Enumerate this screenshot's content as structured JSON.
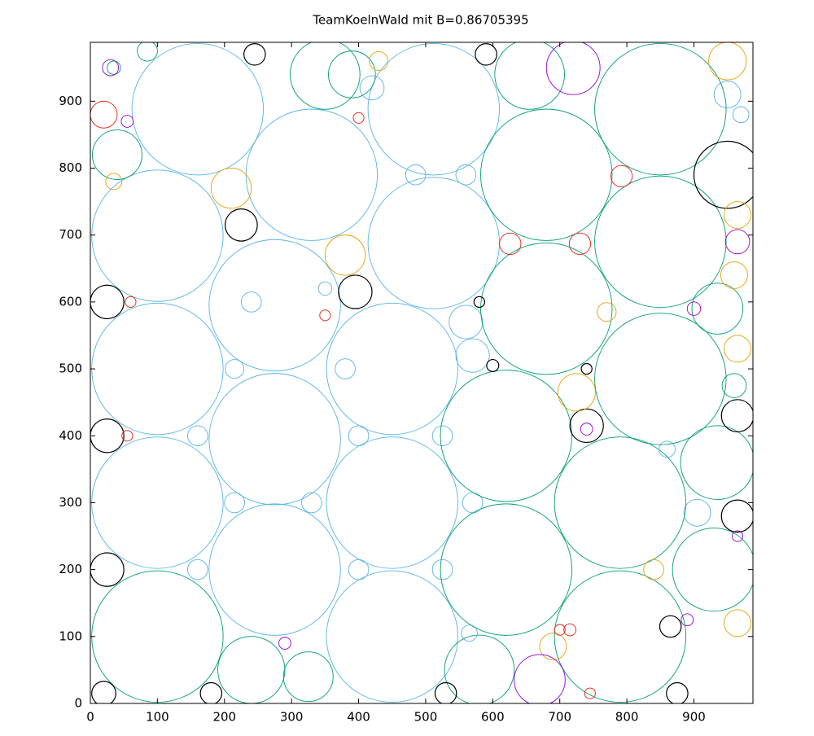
{
  "chart_data": {
    "type": "circles",
    "title": "TeamKoelnWald mit B=0.86705395",
    "xlim": [
      0,
      988
    ],
    "ylim": [
      0,
      988
    ],
    "xticks": [
      0,
      100,
      200,
      300,
      400,
      500,
      600,
      700,
      800,
      900
    ],
    "yticks": [
      0,
      100,
      200,
      300,
      400,
      500,
      600,
      700,
      800,
      900
    ],
    "series": [
      {
        "color": "#56b4e9",
        "x": [
          160,
          512,
          330,
          100,
          512,
          275,
          100,
          450,
          275,
          100,
          450,
          275,
          450,
          560,
          485,
          240,
          380,
          215,
          570,
          560,
          400,
          525,
          160,
          160,
          400,
          525,
          215,
          330,
          570,
          950,
          970,
          860,
          905,
          350,
          420,
          565
        ],
        "y": [
          888,
          888,
          790,
          699,
          688,
          595,
          500,
          500,
          395,
          300,
          300,
          200,
          100,
          790,
          790,
          600,
          500,
          500,
          520,
          570,
          400,
          400,
          400,
          200,
          200,
          200,
          300,
          300,
          300,
          910,
          880,
          380,
          285,
          620,
          920,
          105
        ],
        "r": [
          98,
          98,
          98,
          98,
          98,
          98,
          98,
          98,
          98,
          98,
          98,
          98,
          98,
          15,
          15,
          15,
          15,
          14,
          25,
          25,
          15,
          15,
          15,
          15,
          15,
          15,
          15,
          15,
          15,
          20,
          12,
          12,
          20,
          10,
          18,
          12
        ]
      },
      {
        "color": "#009e73",
        "x": [
          850,
          680,
          680,
          850,
          620,
          790,
          620,
          850,
          790,
          100,
          930,
          935,
          240,
          580,
          325,
          350,
          655,
          390,
          40,
          85,
          960,
          935,
          35
        ],
        "y": [
          888,
          790,
          590,
          690,
          400,
          300,
          200,
          485,
          100,
          100,
          200,
          360,
          50,
          50,
          40,
          940,
          940,
          940,
          820,
          975,
          475,
          590,
          950
        ],
        "r": [
          98,
          98,
          98,
          98,
          98,
          98,
          98,
          98,
          98,
          98,
          62,
          55,
          50,
          52,
          37,
          52,
          52,
          35,
          37,
          15,
          18,
          38,
          10
        ]
      },
      {
        "color": "#000000",
        "x": [
          950,
          395,
          25,
          25,
          25,
          740,
          965,
          965,
          865,
          20,
          180,
          530,
          875,
          590,
          245,
          225,
          580,
          740,
          600
        ],
        "y": [
          790,
          615,
          600,
          400,
          200,
          415,
          430,
          280,
          115,
          15,
          15,
          15,
          15,
          970,
          970,
          715,
          600,
          500,
          505
        ],
        "r": [
          50,
          25,
          25,
          25,
          25,
          25,
          24,
          24,
          16,
          18,
          16,
          16,
          16,
          16,
          16,
          24,
          8,
          8,
          9
        ]
      },
      {
        "color": "#e69f00",
        "x": [
          950,
          965,
          960,
          965,
          725,
          690,
          380,
          210,
          965,
          840,
          35,
          770,
          430
        ],
        "y": [
          960,
          730,
          640,
          530,
          465,
          85,
          670,
          770,
          120,
          200,
          780,
          585,
          960
        ],
        "r": [
          28,
          20,
          20,
          20,
          28,
          20,
          30,
          30,
          20,
          15,
          12,
          14,
          14
        ]
      },
      {
        "color": "#e51e10",
        "x": [
          626,
          730,
          792,
          400,
          745,
          715,
          350,
          20,
          55,
          700,
          60
        ],
        "y": [
          687,
          687,
          788,
          875,
          15,
          110,
          580,
          880,
          400,
          110,
          600
        ],
        "r": [
          16,
          16,
          16,
          8,
          8,
          9,
          8,
          20,
          8,
          8,
          8
        ]
      },
      {
        "color": "#9400d3",
        "x": [
          670,
          720,
          965,
          900,
          30,
          55,
          740,
          290,
          965,
          890
        ],
        "y": [
          35,
          950,
          690,
          590,
          950,
          870,
          410,
          90,
          250,
          125
        ],
        "r": [
          38,
          40,
          18,
          10,
          12,
          9,
          9,
          9,
          8,
          9
        ]
      }
    ]
  }
}
